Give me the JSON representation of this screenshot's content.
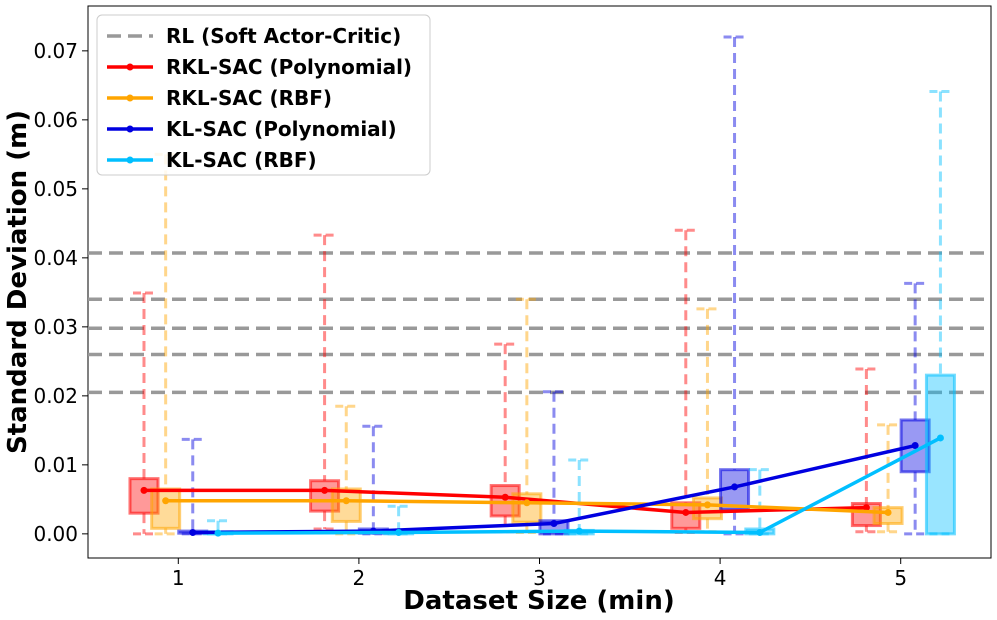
{
  "chart_data": {
    "type": "box",
    "xlabel": "Dataset Size (min)",
    "ylabel": "Standard Deviation (m)",
    "categories": [
      1,
      2,
      3,
      4,
      5
    ],
    "xlim": [
      0.5,
      5.5
    ],
    "ylim": [
      -0.0035,
      0.0765
    ],
    "yticks": [
      0.0,
      0.01,
      0.02,
      0.03,
      0.04,
      0.05,
      0.06,
      0.07
    ],
    "ytick_labels": [
      "0.00",
      "0.01",
      "0.02",
      "0.03",
      "0.04",
      "0.05",
      "0.06",
      "0.07"
    ],
    "xtick_labels": [
      "1",
      "2",
      "3",
      "4",
      "5"
    ],
    "grid": false,
    "legend_position": "top-left",
    "reference_lines": {
      "name": "RL (Soft Actor-Critic)",
      "color": "#999999",
      "style": "dashed",
      "values": [
        0.0205,
        0.026,
        0.0298,
        0.034,
        0.0407
      ]
    },
    "series": [
      {
        "name": "RKL-SAC (Polynomial)",
        "color": "#ff0000",
        "offset": -0.19,
        "mean": [
          0.0063,
          0.0063,
          0.0053,
          0.0031,
          0.0038
        ],
        "q1": [
          0.003,
          0.0033,
          0.0026,
          0.0008,
          0.0012
        ],
        "q3": [
          0.008,
          0.0077,
          0.007,
          0.0045,
          0.0044
        ],
        "whisker_low": [
          0.0,
          0.0007,
          0.0003,
          0.0002,
          0.0003
        ],
        "whisker_high": [
          0.0349,
          0.0433,
          0.0275,
          0.044,
          0.0239
        ]
      },
      {
        "name": "RKL-SAC (RBF)",
        "color": "#ffa500",
        "offset": -0.07,
        "mean": [
          0.0048,
          0.0048,
          0.0045,
          0.0042,
          0.0031
        ],
        "q1": [
          0.0008,
          0.0018,
          0.0017,
          0.0022,
          0.0015
        ],
        "q3": [
          0.0065,
          0.0065,
          0.0058,
          0.0052,
          0.0038
        ],
        "whisker_low": [
          0.0,
          0.0,
          0.0002,
          0.0003,
          0.0003
        ],
        "whisker_high": [
          0.055,
          0.0185,
          0.034,
          0.0326,
          0.0158
        ]
      },
      {
        "name": "KL-SAC (Polynomial)",
        "color": "#0000e0",
        "offset": 0.08,
        "mean": [
          0.0002,
          0.0004,
          0.0015,
          0.0068,
          0.0128
        ],
        "q1": [
          0.0001,
          0.0001,
          0.0,
          0.0035,
          0.009
        ],
        "q3": [
          0.0004,
          0.0007,
          0.0019,
          0.0093,
          0.0165
        ],
        "whisker_low": [
          0.0,
          0.0,
          0.0,
          0.0,
          0.0
        ],
        "whisker_high": [
          0.0137,
          0.0156,
          0.0206,
          0.072,
          0.0363
        ]
      },
      {
        "name": "KL-SAC (RBF)",
        "color": "#00bfff",
        "offset": 0.22,
        "mean": [
          0.0001,
          0.0002,
          0.0004,
          0.0002,
          0.0139
        ],
        "q1": [
          0.0,
          0.0,
          0.0,
          0.0,
          0.0
        ],
        "q3": [
          0.0003,
          0.0003,
          0.0005,
          0.0007,
          0.023
        ],
        "whisker_low": [
          0.0,
          0.0,
          0.0,
          0.0,
          0.0
        ],
        "whisker_high": [
          0.0019,
          0.004,
          0.0107,
          0.0093,
          0.0641
        ]
      }
    ]
  }
}
